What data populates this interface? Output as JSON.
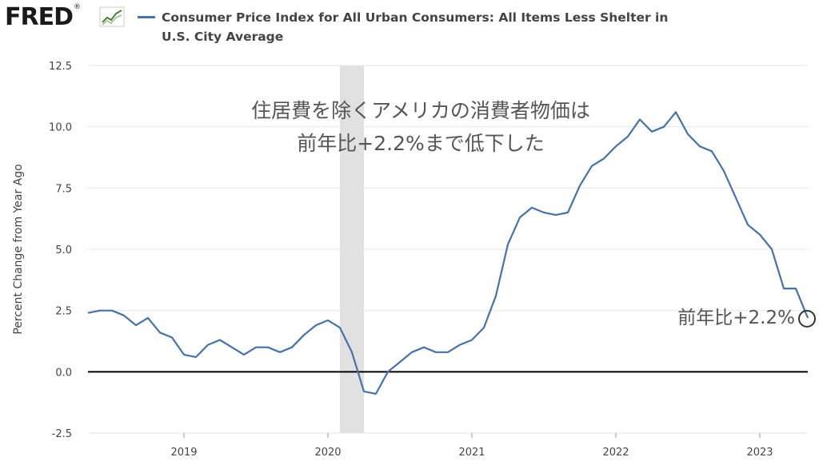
{
  "header": {
    "logo_text": "FRED",
    "logo_mark": "®",
    "logo_icon": "line-graph-icon",
    "series_title_line1": "Consumer Price Index for All Urban Consumers: All Items Less Shelter in",
    "series_title_line2": "U.S. City Average"
  },
  "colors": {
    "series": "#4572a7",
    "zero_line": "#000000",
    "recession": "#e1e1e1",
    "grid": "#e6e6e6",
    "text": "#444444",
    "annotation_text": "#555555"
  },
  "annotations": {
    "headline_line1": "住居費を除くアメリカの消費者物価は",
    "headline_line2": "前年比+2.2%まで低下した",
    "endpoint_label": "前年比+2.2%"
  },
  "chart_data": {
    "type": "line",
    "ylabel": "Percent Change from Year Ago",
    "xlabel": "",
    "ylim": [
      -2.5,
      12.5
    ],
    "yticks": [
      -2.5,
      0.0,
      2.5,
      5.0,
      7.5,
      10.0,
      12.5
    ],
    "ytick_labels": [
      "-2.5",
      "0.0",
      "2.5",
      "5.0",
      "7.5",
      "10.0",
      "12.5"
    ],
    "xlim": [
      "2018-05",
      "2023-05"
    ],
    "xticks": [
      "2019",
      "2020",
      "2021",
      "2022",
      "2023"
    ],
    "grid": "horizontal",
    "recession_shading": {
      "start": "2020-02",
      "end": "2020-04"
    },
    "series": [
      {
        "x": [
          "2018-05",
          "2018-06",
          "2018-07",
          "2018-08",
          "2018-09",
          "2018-10",
          "2018-11",
          "2018-12",
          "2019-01",
          "2019-02",
          "2019-03",
          "2019-04",
          "2019-05",
          "2019-06",
          "2019-07",
          "2019-08",
          "2019-09",
          "2019-10",
          "2019-11",
          "2019-12",
          "2020-01",
          "2020-02",
          "2020-03",
          "2020-04",
          "2020-05",
          "2020-06",
          "2020-07",
          "2020-08",
          "2020-09",
          "2020-10",
          "2020-11",
          "2020-12",
          "2021-01",
          "2021-02",
          "2021-03",
          "2021-04",
          "2021-05",
          "2021-06",
          "2021-07",
          "2021-08",
          "2021-09",
          "2021-10",
          "2021-11",
          "2021-12",
          "2022-01",
          "2022-02",
          "2022-03",
          "2022-04",
          "2022-05",
          "2022-06",
          "2022-07",
          "2022-08",
          "2022-09",
          "2022-10",
          "2022-11",
          "2022-12",
          "2023-01",
          "2023-02",
          "2023-03",
          "2023-04",
          "2023-05"
        ],
        "values": [
          2.4,
          2.5,
          2.5,
          2.3,
          1.9,
          2.2,
          1.6,
          1.4,
          0.7,
          0.6,
          1.1,
          1.3,
          1.0,
          0.7,
          1.0,
          1.0,
          0.8,
          1.0,
          1.5,
          1.9,
          2.1,
          1.8,
          0.8,
          -0.8,
          -0.9,
          0.0,
          0.4,
          0.8,
          1.0,
          0.8,
          0.8,
          1.1,
          1.3,
          1.8,
          3.1,
          5.2,
          6.3,
          6.7,
          6.5,
          6.4,
          6.5,
          7.6,
          8.4,
          8.7,
          9.2,
          9.6,
          10.3,
          9.8,
          10.0,
          10.6,
          9.7,
          9.2,
          9.0,
          8.2,
          7.1,
          6.0,
          5.6,
          5.0,
          3.4,
          3.4,
          2.2
        ]
      }
    ]
  }
}
